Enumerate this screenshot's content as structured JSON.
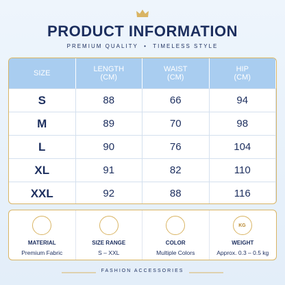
{
  "header": {
    "title": "PRODUCT INFORMATION",
    "subtitle": "PREMIUM QUALITY  •  TIMELESS STYLE"
  },
  "table": {
    "columns": [
      {
        "label": "SIZE"
      },
      {
        "label": "LENGTH",
        "unit": "(CM)"
      },
      {
        "label": "WAIST",
        "unit": "(CM)"
      },
      {
        "label": "HIP",
        "unit": "(CM)"
      }
    ],
    "rows": [
      [
        "S",
        88,
        66,
        94
      ],
      [
        "M",
        89,
        70,
        98
      ],
      [
        "L",
        90,
        76,
        104
      ],
      [
        "XL",
        91,
        82,
        110
      ],
      [
        "XXL",
        92,
        88,
        116
      ]
    ]
  },
  "features": [
    {
      "label": "MATERIAL",
      "value": "Premium Fabric"
    },
    {
      "label": "SIZE RANGE",
      "value": "S – XXL"
    },
    {
      "label": "COLOR",
      "value": "Multiple Colors"
    },
    {
      "label": "WEIGHT",
      "value": "Approx. 0.3 – 0.5 kg",
      "icon_text": "KG"
    }
  ],
  "footer": "FASHION ACCESSORIES"
}
